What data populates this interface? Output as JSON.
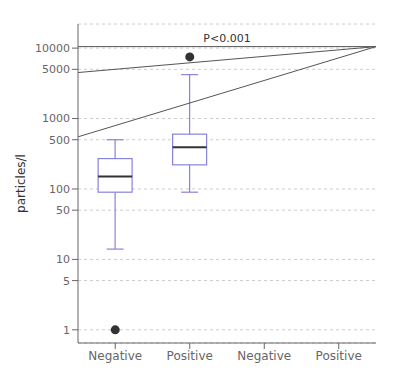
{
  "chart_data": {
    "type": "box",
    "categories": [
      "Negative",
      "Positive"
    ],
    "boxes": [
      {
        "whislo": 14,
        "q1": 90,
        "med": 150,
        "q3": 270,
        "whishi": 500,
        "fliers": [
          1
        ]
      },
      {
        "whislo": 90,
        "q1": 220,
        "med": 390,
        "q3": 600,
        "whishi": 4200,
        "fliers": [
          7500
        ]
      }
    ],
    "ylabel": "particles/l",
    "ylim": [
      0.65,
      22000
    ],
    "yticks": [
      1,
      5,
      10,
      50,
      100,
      500,
      1000,
      5000,
      10000
    ],
    "log": "y",
    "grid": true,
    "bracket": {
      "y": 10500,
      "drop": [
        550,
        4500
      ],
      "text": "P<0.001"
    }
  }
}
